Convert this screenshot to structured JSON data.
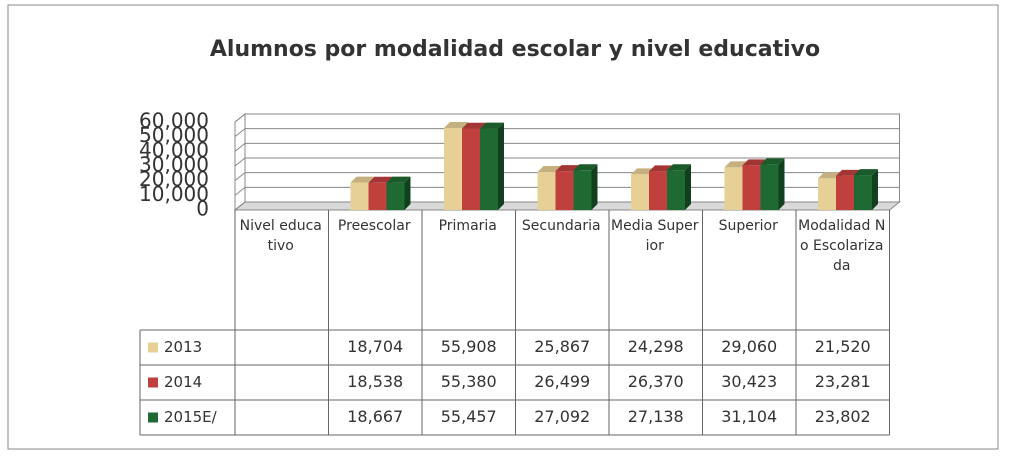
{
  "chart_data": {
    "type": "bar3d",
    "title": "Alumnos por modalidad escolar y nivel educativo",
    "categories": [
      "Nivel educativo",
      "Preescolar",
      "Primaria",
      "Secundaria",
      "Media Superior",
      "Superior",
      "Modalidad No Escolarizada"
    ],
    "series": [
      {
        "name": "2013",
        "color": "#e6d095",
        "values": [
          null,
          18704,
          55908,
          25867,
          24298,
          29060,
          21520
        ],
        "value_labels": [
          null,
          "18,704",
          "55,908",
          "25,867",
          "24,298",
          "29,060",
          "21,520"
        ]
      },
      {
        "name": "2014",
        "color": "#c0403e",
        "values": [
          null,
          18538,
          55380,
          26499,
          26370,
          30423,
          23281
        ],
        "value_labels": [
          null,
          "18,538",
          "55,380",
          "26,499",
          "26,370",
          "30,423",
          "23,281"
        ]
      },
      {
        "name": "2015E/",
        "color": "#1e6a32",
        "values": [
          null,
          18667,
          55457,
          27092,
          27138,
          31104,
          23802
        ],
        "value_labels": [
          null,
          "18,667",
          "55,457",
          "27,092",
          "27,138",
          "31,104",
          "23,802"
        ]
      }
    ],
    "ylim": [
      0,
      60000
    ],
    "yticks": [
      0,
      {
        "value": 10000,
        "label": "10,000"
      },
      {
        "value": 20000,
        "label": "20,000"
      },
      {
        "value": 30000,
        "label": "30,000"
      },
      {
        "value": 40000,
        "label": "40,000"
      },
      {
        "value": 50000,
        "label": "50,000"
      },
      {
        "value": 60000,
        "label": "60,000"
      }
    ],
    "grid": true,
    "data_table": true
  }
}
